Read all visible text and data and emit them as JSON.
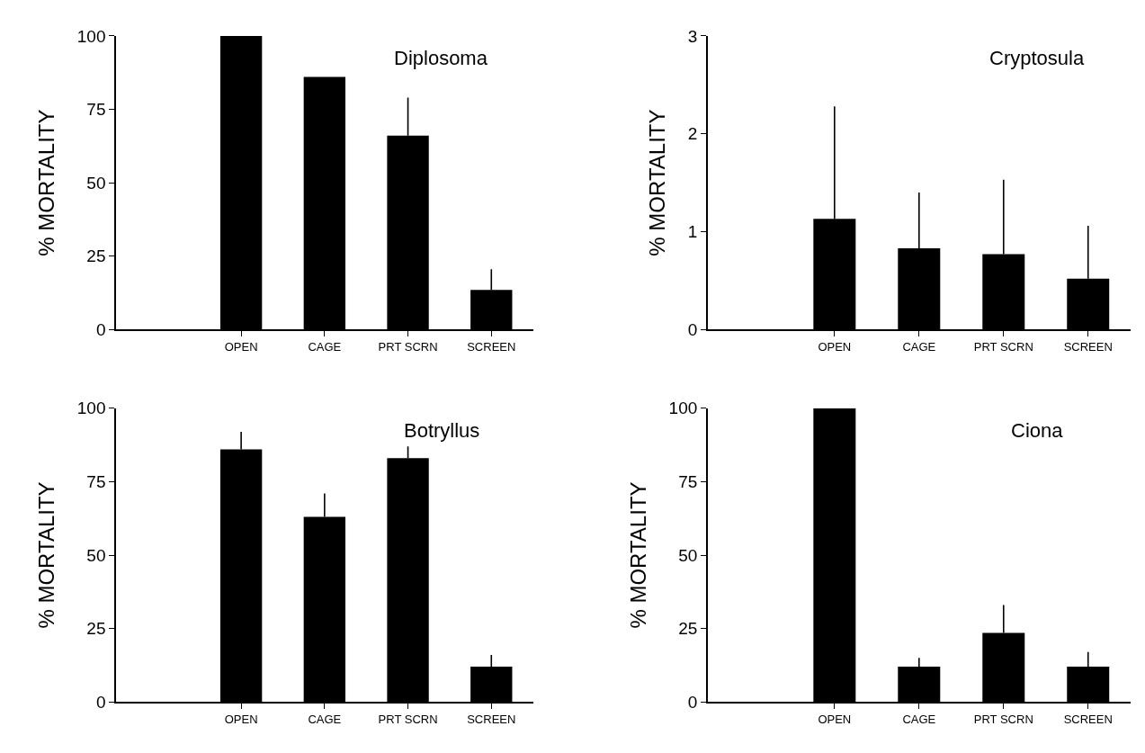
{
  "chart_data": [
    {
      "type": "bar",
      "title": "Diplosoma",
      "ylabel": "% MORTALITY",
      "categories": [
        "OPEN",
        "CAGE",
        "PRT SCRN",
        "SCREEN"
      ],
      "values": [
        100,
        86,
        66,
        13.5
      ],
      "errors": [
        null,
        null,
        [
          66,
          79
        ],
        [
          13.5,
          20.5
        ]
      ],
      "color": "#000000",
      "ylim": [
        0,
        100
      ],
      "yticks": [
        0,
        25,
        50,
        75,
        100
      ]
    },
    {
      "type": "bar",
      "title": "Cryptosula",
      "ylabel": "% MORTALITY",
      "categories": [
        "OPEN",
        "CAGE",
        "PRT SCRN",
        "SCREEN"
      ],
      "values": [
        1.13,
        0.83,
        0.77,
        0.52
      ],
      "errors": [
        [
          1.13,
          2.28
        ],
        [
          0.83,
          1.4
        ],
        [
          0.77,
          1.53
        ],
        [
          0.52,
          1.06
        ]
      ],
      "color": "#000000",
      "ylim": [
        0,
        3
      ],
      "yticks": [
        0,
        1,
        2,
        3
      ]
    },
    {
      "type": "bar",
      "title": "Botryllus",
      "ylabel": "% MORTALITY",
      "categories": [
        "OPEN",
        "CAGE",
        "PRT SCRN",
        "SCREEN"
      ],
      "values": [
        86,
        63,
        83,
        12
      ],
      "errors": [
        [
          86,
          92
        ],
        [
          63,
          71
        ],
        [
          83,
          87
        ],
        [
          12,
          16
        ]
      ],
      "color": "#000000",
      "ylim": [
        0,
        100
      ],
      "yticks": [
        0,
        25,
        50,
        75,
        100
      ]
    },
    {
      "type": "bar",
      "title": "Ciona",
      "ylabel": "% MORTALITY",
      "categories": [
        "OPEN",
        "CAGE",
        "PRT SCRN",
        "SCREEN"
      ],
      "values": [
        100,
        12,
        23.5,
        12
      ],
      "errors": [
        null,
        [
          12,
          15
        ],
        [
          23.5,
          33
        ],
        [
          12,
          17
        ]
      ],
      "color": "#000000",
      "ylim": [
        0,
        100
      ],
      "yticks": [
        0,
        25,
        50,
        75,
        100
      ]
    }
  ]
}
